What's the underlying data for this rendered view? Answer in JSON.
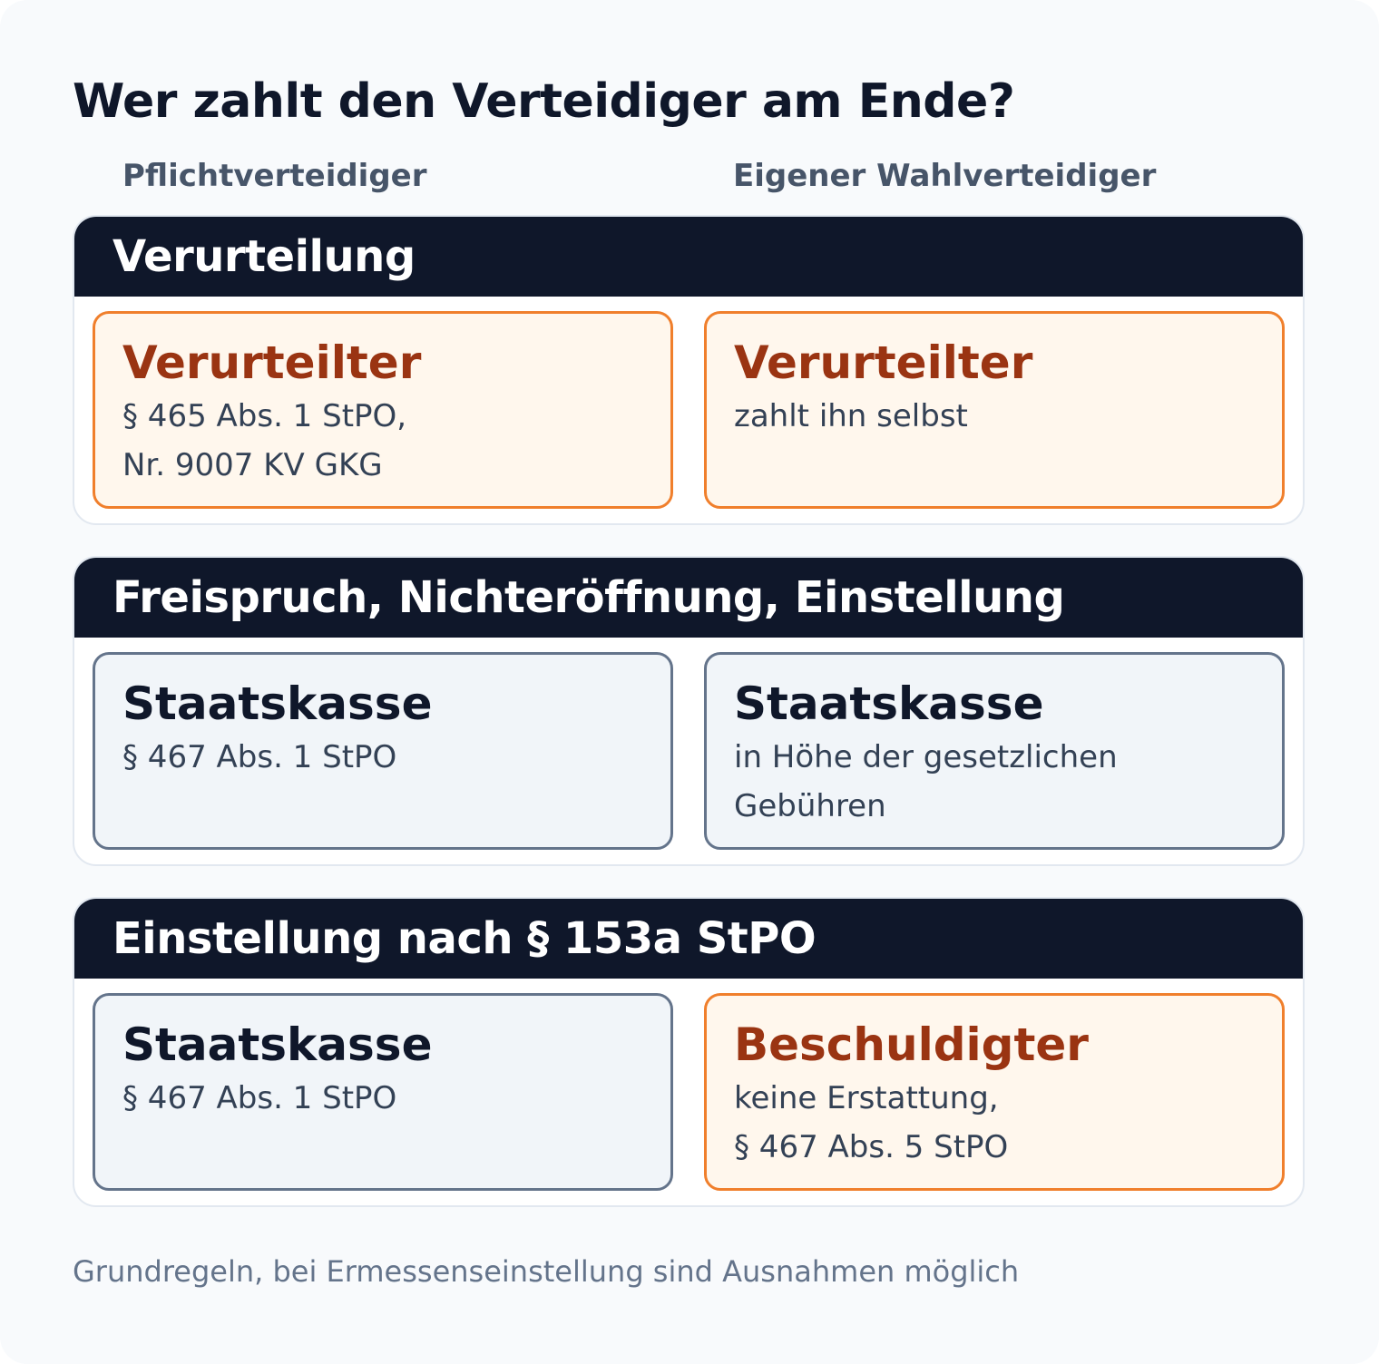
{
  "title": "Wer zahlt den Verteidiger am Ende?",
  "columns": [
    "Pflichtverteidiger",
    "Eigener Wahlverteidiger"
  ],
  "sections": [
    {
      "header": "Verurteilung",
      "cards": [
        {
          "title": "Verurteilter",
          "text": "§ 465 Abs. 1 StPO,\nNr. 9007 KV GKG",
          "style": "orange"
        },
        {
          "title": "Verurteilter",
          "text": "zahlt ihn selbst",
          "style": "orange"
        }
      ]
    },
    {
      "header": "Freispruch, Nichteröffnung, Einstellung",
      "cards": [
        {
          "title": "Staatskasse",
          "text": "§ 467 Abs. 1 StPO",
          "style": "gray"
        },
        {
          "title": "Staatskasse",
          "text": "in Höhe der gesetzlichen\nGebühren",
          "style": "gray"
        }
      ]
    },
    {
      "header": "Einstellung nach § 153a StPO",
      "cards": [
        {
          "title": "Staatskasse",
          "text": "§ 467 Abs. 1 StPO",
          "style": "gray"
        },
        {
          "title": "Beschuldigter",
          "text": "keine Erstattung,\n§ 467 Abs. 5 StPO",
          "style": "orange"
        }
      ]
    }
  ],
  "footer": "Grundregeln, bei Ermessenseinstellung sind Ausnahmen möglich",
  "colors": {
    "header_bg": "#0f172a",
    "orange_border": "#f07f2c",
    "orange_fill": "#fff7ed",
    "orange_title": "#9a3412",
    "gray_border": "#64748b",
    "gray_fill": "#f1f5f9"
  }
}
